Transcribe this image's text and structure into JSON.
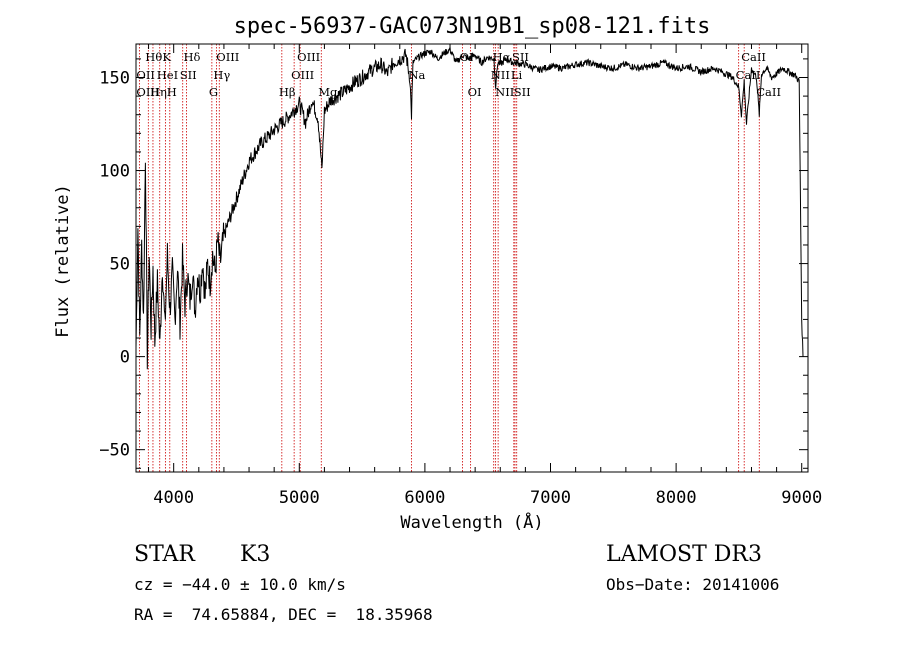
{
  "chart_data": {
    "type": "line",
    "title": "spec-56937-GAC073N19B1_sp08-121.fits",
    "xlabel": "Wavelength (Å)",
    "ylabel": "Flux (relative)",
    "xlim": [
      3700,
      9050
    ],
    "ylim": [
      -62,
      168
    ],
    "xticks": [
      4000,
      5000,
      6000,
      7000,
      8000,
      9000
    ],
    "yticks": [
      -50,
      0,
      50,
      100,
      150
    ],
    "series": [
      {
        "name": "flux",
        "x": [
          3700,
          3715,
          3730,
          3745,
          3760,
          3775,
          3790,
          3805,
          3820,
          3835,
          3850,
          3870,
          3890,
          3910,
          3930,
          3950,
          3970,
          3990,
          4010,
          4030,
          4050,
          4070,
          4090,
          4110,
          4130,
          4150,
          4170,
          4190,
          4210,
          4230,
          4250,
          4270,
          4290,
          4310,
          4330,
          4350,
          4370,
          4400,
          4450,
          4500,
          4550,
          4600,
          4650,
          4700,
          4750,
          4800,
          4850,
          4900,
          4950,
          5000,
          5050,
          5100,
          5150,
          5180,
          5200,
          5250,
          5300,
          5350,
          5400,
          5450,
          5500,
          5550,
          5600,
          5650,
          5700,
          5750,
          5800,
          5850,
          5880,
          5893,
          5905,
          5950,
          6000,
          6050,
          6100,
          6150,
          6200,
          6250,
          6300,
          6350,
          6400,
          6450,
          6500,
          6550,
          6563,
          6580,
          6600,
          6650,
          6700,
          6800,
          6900,
          7000,
          7100,
          7200,
          7300,
          7400,
          7500,
          7600,
          7700,
          7800,
          7900,
          8000,
          8100,
          8200,
          8300,
          8400,
          8450,
          8498,
          8520,
          8542,
          8560,
          8600,
          8640,
          8662,
          8680,
          8720,
          8760,
          8800,
          8850,
          8900,
          8950,
          8980,
          9000,
          9010
        ],
        "y": [
          5,
          70,
          10,
          60,
          20,
          110,
          0,
          55,
          15,
          48,
          8,
          40,
          5,
          50,
          15,
          55,
          25,
          45,
          20,
          48,
          18,
          52,
          28,
          44,
          30,
          46,
          25,
          45,
          35,
          52,
          32,
          50,
          40,
          55,
          45,
          62,
          50,
          65,
          75,
          85,
          95,
          105,
          110,
          115,
          118,
          122,
          125,
          128,
          132,
          136,
          126,
          138,
          128,
          100,
          132,
          138,
          140,
          142,
          145,
          148,
          150,
          153,
          155,
          157,
          152,
          158,
          160,
          162,
          150,
          130,
          158,
          161,
          163,
          164,
          160,
          163,
          165,
          158,
          162,
          160,
          162,
          158,
          161,
          160,
          145,
          158,
          157,
          160,
          158,
          157,
          154,
          156,
          155,
          157,
          158,
          156,
          155,
          157,
          155,
          156,
          158,
          155,
          156,
          153,
          155,
          152,
          150,
          145,
          130,
          148,
          125,
          155,
          150,
          130,
          152,
          155,
          150,
          152,
          155,
          153,
          151,
          148,
          20,
          0
        ]
      }
    ],
    "line_markers": [
      {
        "label": "Hθ",
        "wavelength": 3798,
        "row": 0
      },
      {
        "label": "OII",
        "wavelength": 3727,
        "row": 1
      },
      {
        "label": "OIII",
        "wavelength": 3727,
        "row": 2
      },
      {
        "label": "K",
        "wavelength": 3934,
        "row": 0
      },
      {
        "label": "HeI",
        "wavelength": 3889,
        "row": 1
      },
      {
        "label": "Hη",
        "wavelength": 3835,
        "row": 2
      },
      {
        "label": "SII",
        "wavelength": 4072,
        "row": 1
      },
      {
        "label": "H",
        "wavelength": 3969,
        "row": 2
      },
      {
        "label": "Hδ",
        "wavelength": 4102,
        "row": 0
      },
      {
        "label": "OIII",
        "wavelength": 4363,
        "row": 0
      },
      {
        "label": "Hγ",
        "wavelength": 4340,
        "row": 1
      },
      {
        "label": "G",
        "wavelength": 4304,
        "row": 2
      },
      {
        "label": "OIII",
        "wavelength": 5007,
        "row": 0
      },
      {
        "label": "OIII",
        "wavelength": 4959,
        "row": 1
      },
      {
        "label": "Hβ",
        "wavelength": 4861,
        "row": 2
      },
      {
        "label": "Mg",
        "wavelength": 5175,
        "row": 2
      },
      {
        "label": "Na",
        "wavelength": 5893,
        "row": 1
      },
      {
        "label": "OI",
        "wavelength": 6300,
        "row": 0
      },
      {
        "label": "OI",
        "wavelength": 6364,
        "row": 2
      },
      {
        "label": "Hα",
        "wavelength": 6563,
        "row": 0
      },
      {
        "label": "NII",
        "wavelength": 6548,
        "row": 1
      },
      {
        "label": "NII",
        "wavelength": 6583,
        "row": 2
      },
      {
        "label": "SII",
        "wavelength": 6717,
        "row": 0
      },
      {
        "label": "Li",
        "wavelength": 6708,
        "row": 1
      },
      {
        "label": "SII",
        "wavelength": 6731,
        "row": 2
      },
      {
        "label": "CaII",
        "wavelength": 8542,
        "row": 0
      },
      {
        "label": "CaII",
        "wavelength": 8498,
        "row": 1
      },
      {
        "label": "CaII",
        "wavelength": 8662,
        "row": 2
      }
    ]
  },
  "info": {
    "object_class": "STAR",
    "subclass": "K3",
    "survey": "LAMOST DR3",
    "cz": "cz = −44.0 ± 10.0 km/s",
    "obs_date": "Obs−Date: 20141006",
    "coords": "RA =  74.65884, DEC =  18.35968"
  },
  "colors": {
    "spectrum": "#000000",
    "marker_line": "#cc0000",
    "axis": "#000000"
  }
}
